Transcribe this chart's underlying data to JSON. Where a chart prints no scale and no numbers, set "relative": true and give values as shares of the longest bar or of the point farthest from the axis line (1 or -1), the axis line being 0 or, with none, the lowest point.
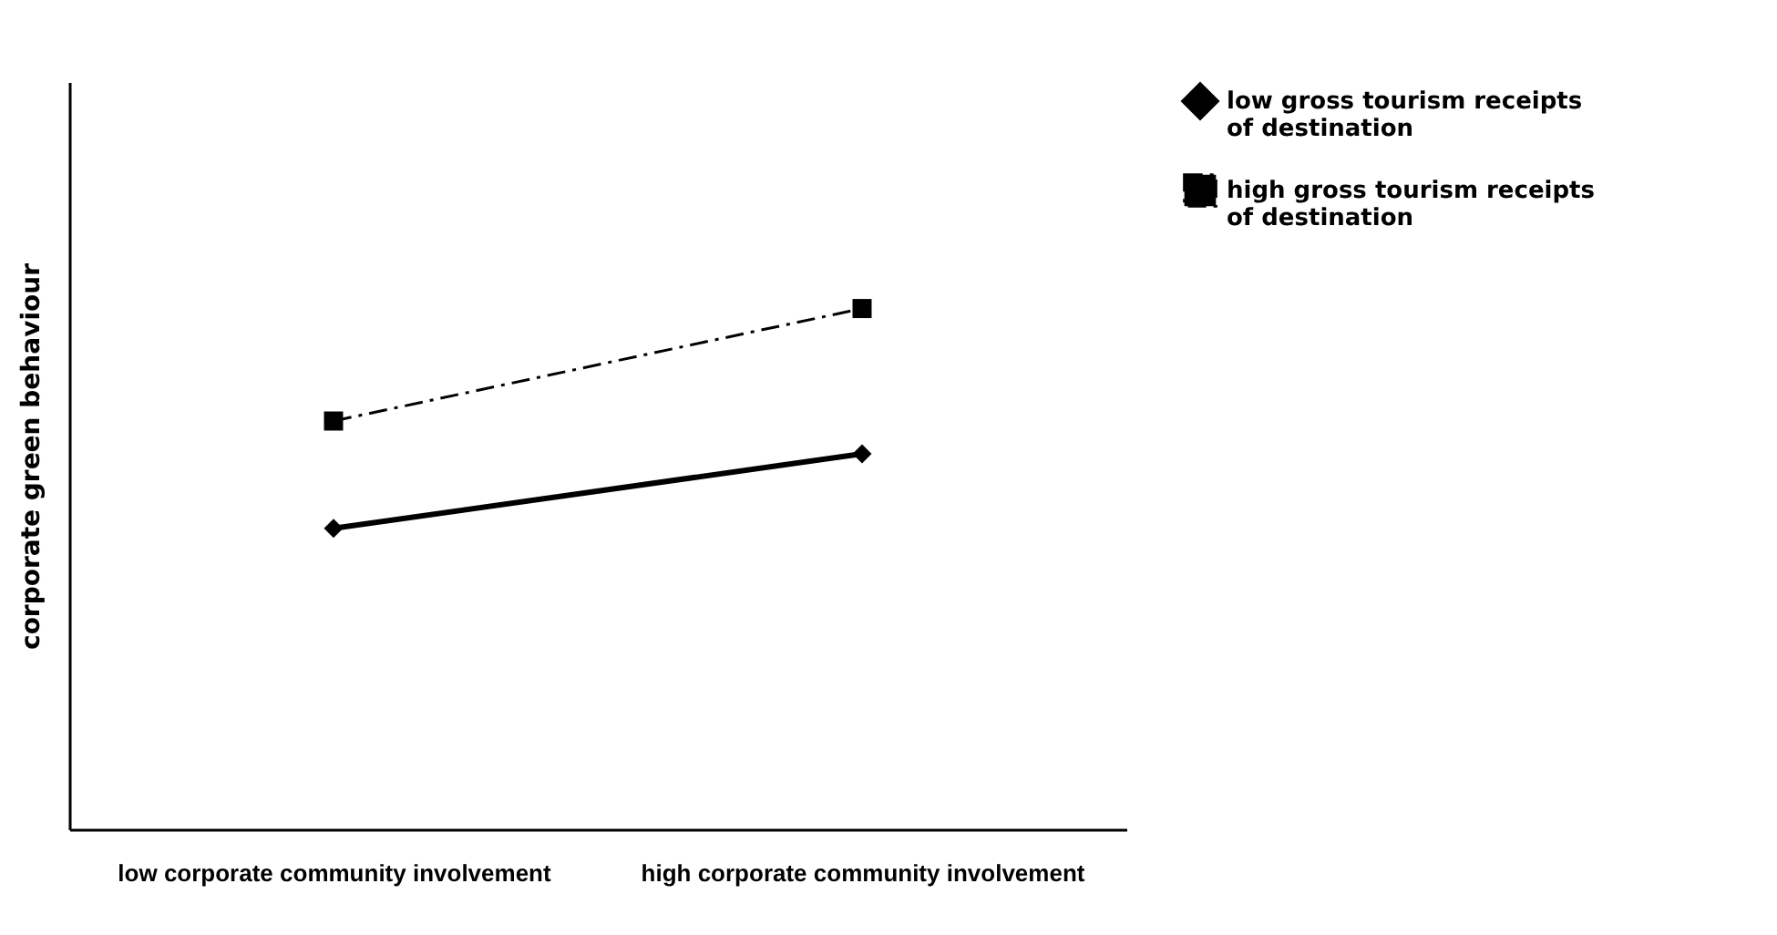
{
  "chart_data": {
    "type": "line",
    "relative": true,
    "xlabel": null,
    "ylabel": "corporate green behaviour",
    "categories": [
      "low corporate community involvement",
      "high corporate community involvement"
    ],
    "series": [
      {
        "name": "low gross tourism receipts of destination",
        "color": "#000000",
        "values": [
          0.578,
          0.721
        ],
        "marker": "diamond",
        "line_style": "solid"
      },
      {
        "name": "high gross tourism receipts of destination",
        "color": "#000000",
        "values": [
          0.784,
          1
        ],
        "marker": "square",
        "line_style": "dashdot"
      }
    ],
    "grid": false,
    "legend": "right"
  }
}
